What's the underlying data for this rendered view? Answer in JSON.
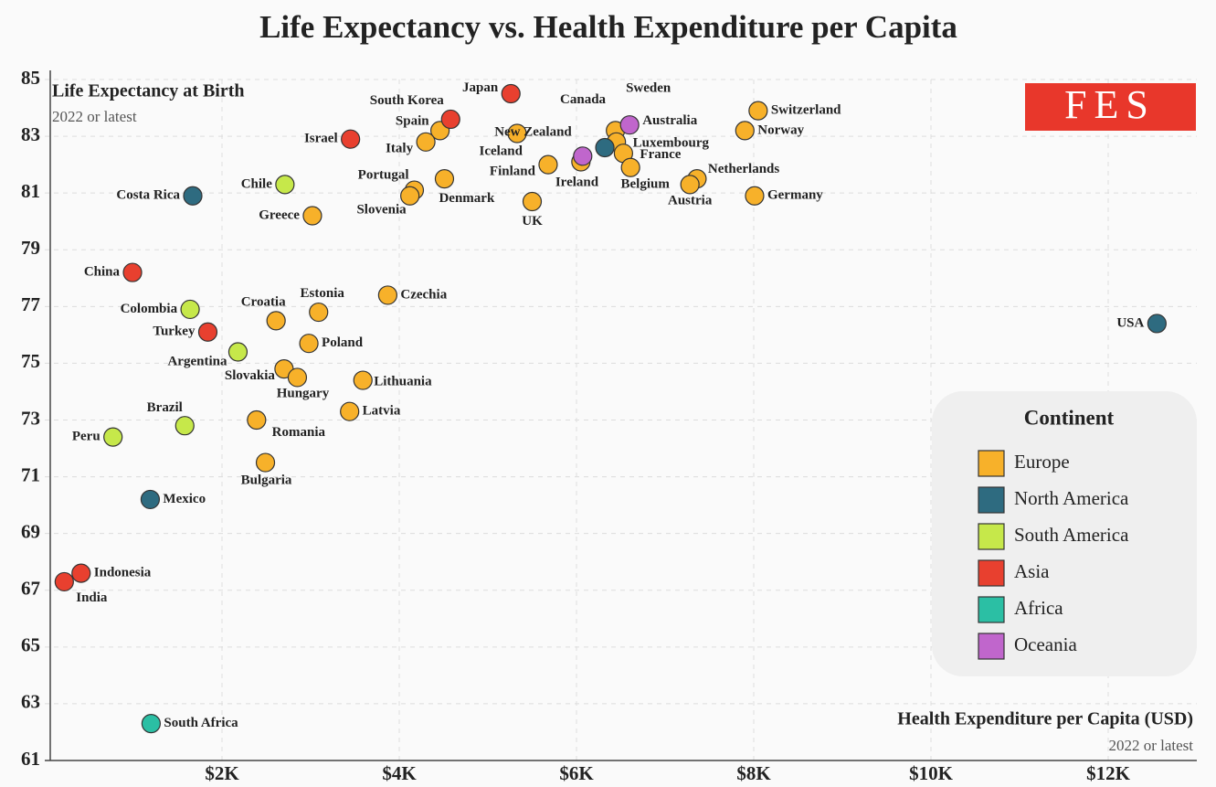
{
  "chart_data": {
    "type": "scatter",
    "title": "Life Expectancy vs. Health Expenditure per Capita",
    "y_label": "Life Expectancy at Birth",
    "y_note": "2022 or latest",
    "x_label": "Health Expenditure per Capita (USD)",
    "x_note": "2022 or latest",
    "logo": "FES",
    "legend_title": "Continent",
    "grid": true,
    "xlim": [
      0,
      13000
    ],
    "ylim": [
      61,
      85
    ],
    "xticks": [
      {
        "value": 2000,
        "label": "$2K"
      },
      {
        "value": 4000,
        "label": "$4K"
      },
      {
        "value": 6000,
        "label": "$6K"
      },
      {
        "value": 8000,
        "label": "$8K"
      },
      {
        "value": 10000,
        "label": "$10K"
      },
      {
        "value": 12000,
        "label": "$12K"
      }
    ],
    "yticks": [
      61,
      63,
      65,
      67,
      69,
      71,
      73,
      75,
      77,
      79,
      81,
      83,
      85
    ],
    "series": [
      {
        "name": "Europe",
        "color": "#f7b12a",
        "labels": [
          "Spain",
          "Italy",
          "Iceland",
          "Portugal",
          "Slovenia",
          "Denmark",
          "UK",
          "Finland",
          "Ireland",
          "Sweden",
          "Luxembourg",
          "France",
          "Belgium",
          "Netherlands",
          "Austria",
          "Switzerland",
          "Norway",
          "Germany",
          "Greece",
          "Croatia",
          "Estonia",
          "Czechia",
          "Poland",
          "Slovakia",
          "Hungary",
          "Lithuania",
          "Latvia",
          "Romania",
          "Bulgaria"
        ],
        "x": [
          4460,
          4300,
          5330,
          4170,
          4120,
          4510,
          5500,
          5680,
          6050,
          6440,
          6450,
          6530,
          6610,
          7360,
          7280,
          8050,
          7900,
          8010,
          3020,
          2610,
          3090,
          3870,
          2980,
          2700,
          2850,
          3590,
          3440,
          2390,
          2490
        ],
        "y": [
          83.2,
          82.8,
          83.1,
          81.1,
          80.9,
          81.5,
          80.7,
          82.0,
          82.1,
          83.2,
          82.8,
          82.4,
          81.9,
          81.5,
          81.3,
          83.9,
          83.2,
          80.9,
          80.2,
          76.5,
          76.8,
          77.4,
          75.7,
          74.8,
          74.5,
          74.4,
          73.3,
          73.0,
          71.5
        ]
      },
      {
        "name": "North America",
        "color": "#2e6b80",
        "labels": [
          "Costa Rica",
          "Canada",
          "Mexico",
          "USA"
        ],
        "x": [
          1670,
          6320,
          1190,
          12550
        ],
        "y": [
          80.9,
          82.6,
          70.2,
          76.4
        ]
      },
      {
        "name": "South America",
        "color": "#c6e84a",
        "labels": [
          "Chile",
          "Colombia",
          "Argentina",
          "Brazil",
          "Peru"
        ],
        "x": [
          2710,
          1640,
          2180,
          1580,
          770
        ],
        "y": [
          81.3,
          76.9,
          75.4,
          72.8,
          72.4
        ]
      },
      {
        "name": "Asia",
        "color": "#e8402f",
        "labels": [
          "Japan",
          "South Korea",
          "Israel",
          "China",
          "Turkey",
          "Indonesia",
          "India"
        ],
        "x": [
          5260,
          4580,
          3450,
          990,
          1840,
          410,
          220
        ],
        "y": [
          84.5,
          83.6,
          82.9,
          78.2,
          76.1,
          67.6,
          67.3
        ]
      },
      {
        "name": "Africa",
        "color": "#2bbfa4",
        "labels": [
          "South Africa"
        ],
        "x": [
          1200
        ],
        "y": [
          62.3
        ]
      },
      {
        "name": "Oceania",
        "color": "#c066cc",
        "labels": [
          "New Zealand",
          "Australia"
        ],
        "x": [
          6070,
          6600
        ],
        "y": [
          82.3,
          83.4
        ]
      }
    ]
  }
}
